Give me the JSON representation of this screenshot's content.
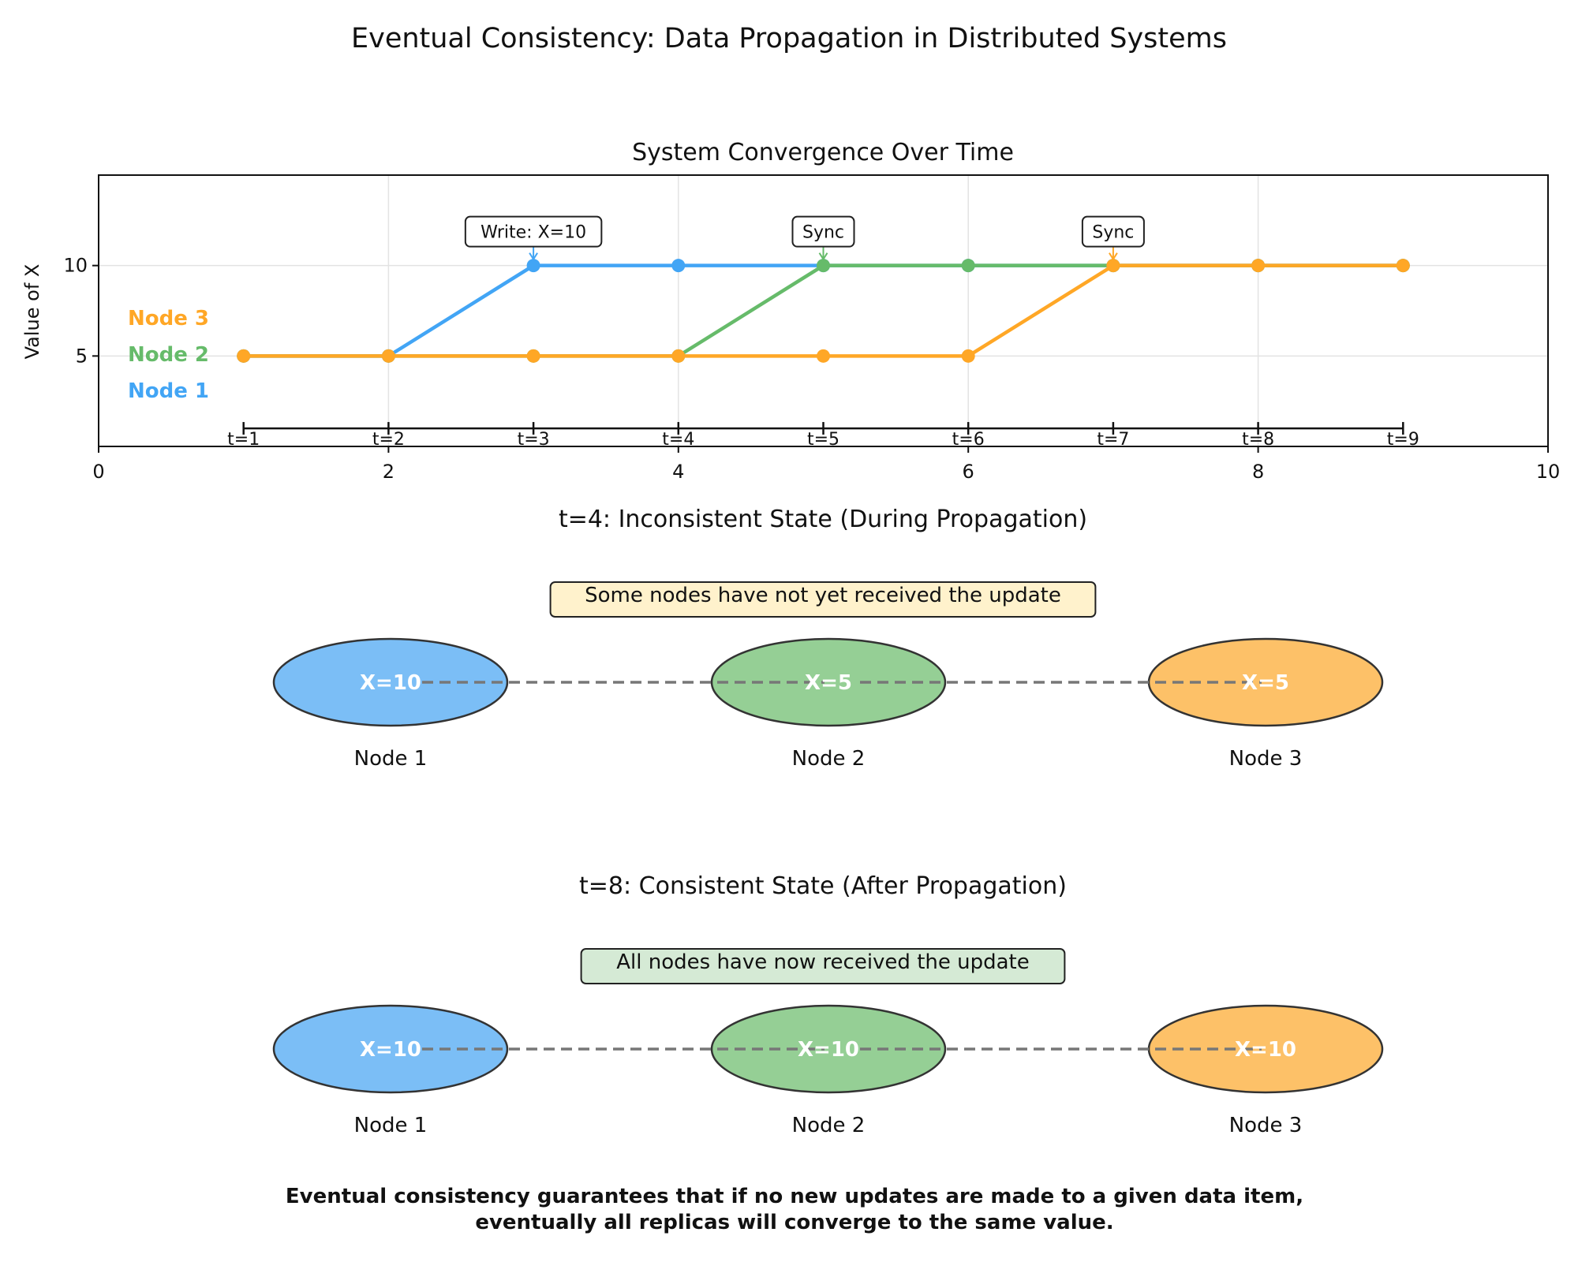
{
  "figure": {
    "title": "Eventual Consistency: Data Propagation in Distributed Systems",
    "footnote_line1": "Eventual consistency guarantees that if no new updates are made to a given data item,",
    "footnote_line2": "eventually all replicas will converge to the same value."
  },
  "colors": {
    "node1": "#42a5f5",
    "node2": "#66bb6a",
    "node3": "#ffa726",
    "node1_fill": "#7bbef6",
    "node2_fill": "#95cf95",
    "node3_fill": "#fdc168"
  },
  "chart_data": {
    "type": "line",
    "title": "System Convergence Over Time",
    "xlabel": "",
    "ylabel": "Value of X",
    "xlim": [
      0,
      10
    ],
    "ylim": [
      0,
      15
    ],
    "xticks": [
      0,
      2,
      4,
      6,
      8,
      10
    ],
    "yticks": [
      5,
      10
    ],
    "grid": true,
    "legend_position": "left",
    "series": [
      {
        "name": "Node 1",
        "color_key": "node1",
        "x": [
          1,
          2,
          3,
          4,
          5,
          6,
          7,
          8,
          9
        ],
        "y": [
          5,
          5,
          10,
          10,
          10,
          10,
          10,
          10,
          10
        ]
      },
      {
        "name": "Node 2",
        "color_key": "node2",
        "x": [
          1,
          2,
          3,
          4,
          5,
          6,
          7,
          8,
          9
        ],
        "y": [
          5,
          5,
          5,
          5,
          10,
          10,
          10,
          10,
          10
        ]
      },
      {
        "name": "Node 3",
        "color_key": "node3",
        "x": [
          1,
          2,
          3,
          4,
          5,
          6,
          7,
          8,
          9
        ],
        "y": [
          5,
          5,
          5,
          5,
          5,
          5,
          10,
          10,
          10
        ]
      }
    ],
    "timeline": {
      "y": 1,
      "x": [
        1,
        2,
        3,
        4,
        5,
        6,
        7,
        8,
        9
      ],
      "labels": [
        "t=1",
        "t=2",
        "t=3",
        "t=4",
        "t=5",
        "t=6",
        "t=7",
        "t=8",
        "t=9"
      ]
    },
    "annotations": [
      {
        "text": "Write: X=10",
        "x": 3,
        "y": 10,
        "color_key": "node1"
      },
      {
        "text": "Sync",
        "x": 5,
        "y": 10,
        "color_key": "node2"
      },
      {
        "text": "Sync",
        "x": 7,
        "y": 10,
        "color_key": "node3"
      }
    ]
  },
  "states": [
    {
      "title": "t=4: Inconsistent State (During Propagation)",
      "banner": "Some nodes have not yet received the update",
      "banner_fill": "#fff2cc",
      "nodes": [
        {
          "name": "Node 1",
          "value": "X=10",
          "color_key": "node1_fill"
        },
        {
          "name": "Node 2",
          "value": "X=5",
          "color_key": "node2_fill"
        },
        {
          "name": "Node 3",
          "value": "X=5",
          "color_key": "node3_fill"
        }
      ]
    },
    {
      "title": "t=8: Consistent State (After Propagation)",
      "banner": "All nodes have now received the update",
      "banner_fill": "#d5ead5",
      "nodes": [
        {
          "name": "Node 1",
          "value": "X=10",
          "color_key": "node1_fill"
        },
        {
          "name": "Node 2",
          "value": "X=10",
          "color_key": "node2_fill"
        },
        {
          "name": "Node 3",
          "value": "X=10",
          "color_key": "node3_fill"
        }
      ]
    }
  ]
}
